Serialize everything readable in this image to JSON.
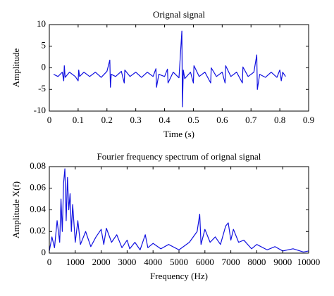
{
  "chart_data": [
    {
      "type": "line",
      "title": "Orignal signal",
      "xlabel": "Time (s)",
      "ylabel": "Amplitude",
      "color": "#1010e0",
      "xlim": [
        0,
        0.9
      ],
      "ylim": [
        -10,
        10
      ],
      "xticks": [
        0,
        0.1,
        0.2,
        0.3,
        0.4,
        0.5,
        0.6,
        0.7,
        0.8,
        0.9
      ],
      "yticks": [
        -10,
        -5,
        0,
        5,
        10
      ],
      "x": [
        0.015,
        0.03,
        0.045,
        0.05,
        0.052,
        0.055,
        0.07,
        0.09,
        0.1,
        0.102,
        0.105,
        0.12,
        0.14,
        0.16,
        0.18,
        0.2,
        0.21,
        0.212,
        0.215,
        0.23,
        0.25,
        0.26,
        0.262,
        0.28,
        0.3,
        0.32,
        0.34,
        0.36,
        0.37,
        0.372,
        0.38,
        0.4,
        0.41,
        0.412,
        0.43,
        0.45,
        0.46,
        0.462,
        0.465,
        0.47,
        0.49,
        0.5,
        0.502,
        0.52,
        0.54,
        0.56,
        0.562,
        0.58,
        0.6,
        0.61,
        0.612,
        0.63,
        0.65,
        0.67,
        0.672,
        0.69,
        0.71,
        0.72,
        0.722,
        0.73,
        0.75,
        0.77,
        0.79,
        0.8,
        0.805,
        0.81,
        0.82
      ],
      "values": [
        -1.5,
        -2,
        -1,
        -3,
        0.5,
        -2.2,
        -1,
        -2,
        -3,
        -0.5,
        -2,
        -1,
        -2,
        -1,
        -2.2,
        -0.8,
        1.8,
        -4.5,
        -1.5,
        -2,
        -0.8,
        -3.5,
        -0.5,
        -2,
        -1,
        -2.2,
        -1,
        -2,
        -0.2,
        -4.5,
        -1.5,
        -2,
        -0.3,
        -3.5,
        -1,
        -2.3,
        8.5,
        -9,
        -0.5,
        -2.5,
        -1,
        -3.5,
        0.5,
        -2,
        -1,
        -3.5,
        0,
        -2,
        -1,
        -3.5,
        0.5,
        -2,
        -1,
        -3.5,
        0.2,
        -2,
        -1,
        3,
        -5,
        -1.5,
        -2.2,
        -1,
        -2.2,
        -0.5,
        -3,
        -1,
        -2
      ]
    },
    {
      "type": "line",
      "title": "Fourier frequency spectrum of orignal signal",
      "xlabel": "Frequency (Hz)",
      "ylabel": "Amplitude X(f)",
      "color": "#1010e0",
      "xlim": [
        0,
        10000
      ],
      "ylim": [
        0,
        0.08
      ],
      "xticks": [
        0,
        1000,
        2000,
        3000,
        4000,
        5000,
        6000,
        7000,
        8000,
        9000,
        10000
      ],
      "yticks": [
        0,
        0.02,
        0.04,
        0.06,
        0.08
      ],
      "x": [
        0,
        100,
        200,
        300,
        400,
        450,
        500,
        550,
        600,
        650,
        700,
        750,
        800,
        850,
        900,
        1000,
        1100,
        1200,
        1400,
        1600,
        1800,
        2000,
        2100,
        2200,
        2400,
        2600,
        2800,
        3000,
        3100,
        3300,
        3500,
        3700,
        3800,
        4000,
        4300,
        4600,
        5000,
        5400,
        5700,
        5800,
        5850,
        6000,
        6200,
        6400,
        6600,
        6800,
        6900,
        7000,
        7100,
        7300,
        7500,
        7800,
        8000,
        8400,
        8700,
        9000,
        9400,
        9800,
        10000
      ],
      "values": [
        0.002,
        0.015,
        0.005,
        0.03,
        0.01,
        0.05,
        0.02,
        0.065,
        0.078,
        0.03,
        0.07,
        0.04,
        0.055,
        0.02,
        0.045,
        0.01,
        0.03,
        0.008,
        0.02,
        0.006,
        0.015,
        0.022,
        0.008,
        0.023,
        0.01,
        0.017,
        0.005,
        0.012,
        0.004,
        0.01,
        0.003,
        0.017,
        0.005,
        0.009,
        0.004,
        0.008,
        0.003,
        0.01,
        0.02,
        0.036,
        0.008,
        0.022,
        0.01,
        0.015,
        0.008,
        0.025,
        0.028,
        0.012,
        0.022,
        0.01,
        0.012,
        0.004,
        0.008,
        0.003,
        0.006,
        0.002,
        0.004,
        0.001,
        0.002
      ]
    }
  ]
}
